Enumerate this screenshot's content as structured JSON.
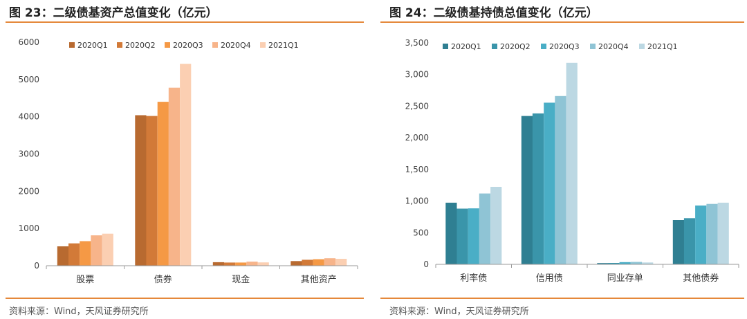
{
  "charts": [
    {
      "id": "left",
      "title": "图 23：二级债基资产总值变化（亿元）",
      "source": "资料来源：Wind，天风证券研究所",
      "chart_data": {
        "type": "bar",
        "categories": [
          "股票",
          "债券",
          "现金",
          "其他资产"
        ],
        "series": [
          {
            "name": "2020Q1",
            "color": "#b86a30",
            "values": [
              520,
              4040,
              95,
              125
            ]
          },
          {
            "name": "2020Q2",
            "color": "#d27a38",
            "values": [
              600,
              4020,
              85,
              160
            ]
          },
          {
            "name": "2020Q3",
            "color": "#f59945",
            "values": [
              660,
              4400,
              85,
              175
            ]
          },
          {
            "name": "2020Q4",
            "color": "#f7b48a",
            "values": [
              815,
              4780,
              110,
              200
            ]
          },
          {
            "name": "2021Q1",
            "color": "#fbcfb2",
            "values": [
              860,
              5420,
              90,
              185
            ]
          }
        ],
        "ylim": [
          0,
          6000
        ],
        "yticks": [
          0,
          1000,
          2000,
          3000,
          4000,
          5000,
          6000
        ],
        "ytick_labels": [
          "0",
          "1000",
          "2000",
          "3000",
          "4000",
          "5000",
          "6000"
        ],
        "legend": "top"
      }
    },
    {
      "id": "right",
      "title": "图 24：二级债基持债总值变化（亿元）",
      "source": "资料来源：Wind，天风证券研究所",
      "chart_data": {
        "type": "bar",
        "categories": [
          "利率债",
          "信用债",
          "同业存单",
          "其他债券"
        ],
        "series": [
          {
            "name": "2020Q1",
            "color": "#2f7f92",
            "values": [
              975,
              2345,
              20,
              700
            ]
          },
          {
            "name": "2020Q2",
            "color": "#3a95aa",
            "values": [
              880,
              2385,
              22,
              730
            ]
          },
          {
            "name": "2020Q3",
            "color": "#4aaec6",
            "values": [
              885,
              2555,
              35,
              930
            ]
          },
          {
            "name": "2020Q4",
            "color": "#8fc4d5",
            "values": [
              1120,
              2660,
              38,
              955
            ]
          },
          {
            "name": "2021Q1",
            "color": "#bcd8e3",
            "values": [
              1225,
              3185,
              30,
              975
            ]
          }
        ],
        "ylim": [
          0,
          3500
        ],
        "yticks": [
          0,
          500,
          1000,
          1500,
          2000,
          2500,
          3000,
          3500
        ],
        "ytick_labels": [
          "0",
          "500",
          "1,000",
          "1,500",
          "2,000",
          "2,500",
          "3,000",
          "3,500"
        ],
        "legend": "top"
      }
    }
  ]
}
